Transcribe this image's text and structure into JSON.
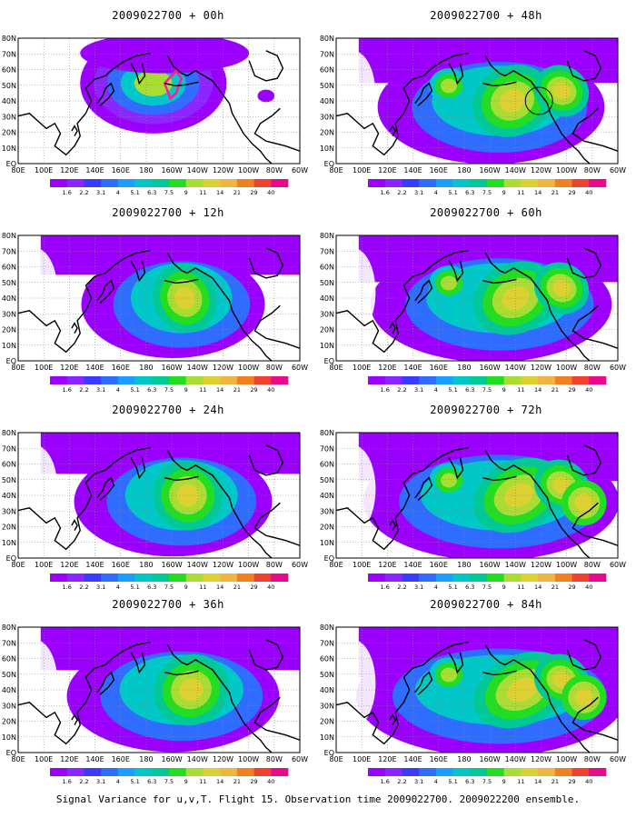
{
  "colorbar": {
    "levels": [
      "1.6",
      "2.2",
      "3.1",
      "4",
      "5.1",
      "6.3",
      "7.5",
      "9",
      "11",
      "14",
      "21",
      "29",
      "40"
    ],
    "colors": [
      "#9b00ff",
      "#8c25ff",
      "#3b3bff",
      "#2e6dff",
      "#1a9eff",
      "#00c8c8",
      "#00c896",
      "#22dd22",
      "#aadd33",
      "#ddd033",
      "#f0b440",
      "#f08020",
      "#f04030",
      "#e80a8a"
    ]
  },
  "map": {
    "lat_labels": [
      "80N",
      "70N",
      "60N",
      "50N",
      "40N",
      "30N",
      "20N",
      "10N",
      "EQ"
    ],
    "lon_labels": [
      "80E",
      "100E",
      "120E",
      "140E",
      "160E",
      "180",
      "160W",
      "140W",
      "120W",
      "100W",
      "80W",
      "60W"
    ]
  },
  "panels": [
    {
      "title": "2009022700 + 00h",
      "lead_hours": 0
    },
    {
      "title": "2009022700 + 48h",
      "lead_hours": 48
    },
    {
      "title": "2009022700 + 12h",
      "lead_hours": 12
    },
    {
      "title": "2009022700 + 60h",
      "lead_hours": 60
    },
    {
      "title": "2009022700 + 24h",
      "lead_hours": 24
    },
    {
      "title": "2009022700 + 72h",
      "lead_hours": 72
    },
    {
      "title": "2009022700 + 36h",
      "lead_hours": 36
    },
    {
      "title": "2009022700 + 84h",
      "lead_hours": 84
    }
  ],
  "caption": "Signal Variance for u,v,T. Flight 15. Observation time 2009022700. 2009022200 ensemble."
}
